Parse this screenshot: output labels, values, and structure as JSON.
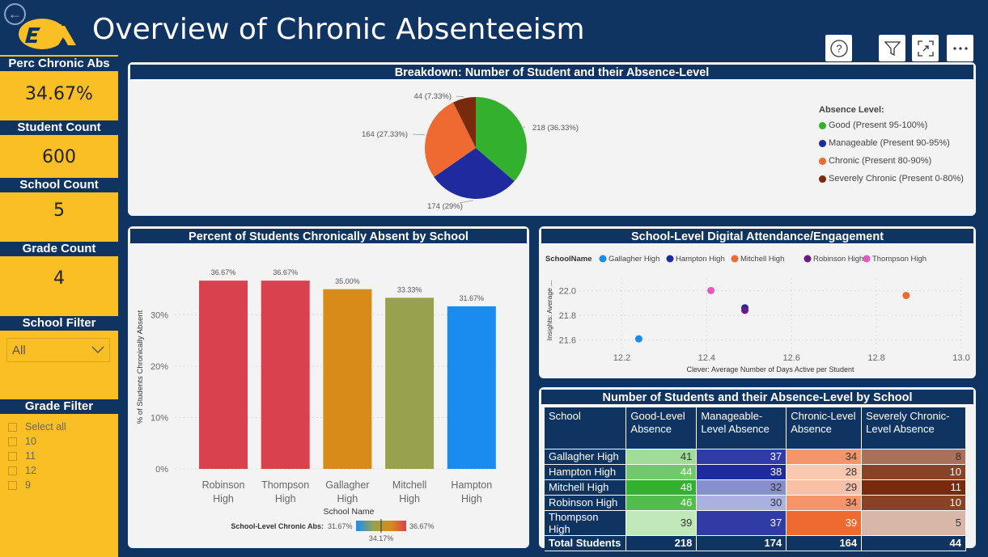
{
  "header": {
    "title": "Overview of Chronic Absenteeism"
  },
  "toolbar": {
    "help_icon": "question-circle-icon",
    "filter_icon": "funnel-icon",
    "expand_icon": "focus-mode-icon",
    "more_icon": "ellipsis-icon"
  },
  "sidebar": {
    "perc_label": "Perc Chronic Abs",
    "perc_value": "34.67%",
    "student_label": "Student Count",
    "student_value": "600",
    "school_label": "School Count",
    "school_value": "5",
    "grade_label": "Grade Count",
    "grade_value": "4",
    "school_filter_label": "School Filter",
    "school_filter_value": "All",
    "grade_filter_label": "Grade Filter",
    "grade_options": [
      "Select all",
      "10",
      "11",
      "12",
      "9"
    ]
  },
  "pie_panel": {
    "title": "Breakdown: Number of Student and their Absence-Level",
    "legend_title": "Absence Level:",
    "legend": [
      "Good (Present 95-100%)",
      "Manageable (Present 90-95%)",
      "Chronic (Present 80-90%)",
      "Severely Chronic (Present 0-80%)"
    ],
    "slice_labels": [
      "218 (36.33%)",
      "174 (29%)",
      "164 (27.33%)",
      "44 (7.33%)"
    ]
  },
  "bar_panel": {
    "title": "Percent of Students Chronically Absent by School",
    "ylabel": "% of Students Chronically Absent",
    "xlabel": "School Name",
    "yticks": [
      "0%",
      "10%",
      "20%",
      "30%"
    ],
    "categories": [
      [
        "Robinson",
        "High"
      ],
      [
        "Thompson",
        "High"
      ],
      [
        "Gallagher",
        "High"
      ],
      [
        "Mitchell",
        "High"
      ],
      [
        "Hampton",
        "High"
      ]
    ],
    "data_labels": [
      "36.67%",
      "36.67%",
      "35.00%",
      "33.33%",
      "31.67%"
    ],
    "gradient_label": "School-Level Chronic Abs:",
    "gradient_min": "31.67%",
    "gradient_max": "36.67%",
    "gradient_mid": "34.17%"
  },
  "scatter_panel": {
    "title": "School-Level Digital Attendance/Engagement",
    "legend_title": "SchoolName",
    "legend": [
      "Gallagher High",
      "Hampton High",
      "Mitchell High",
      "Robinson High",
      "Thompson High"
    ],
    "xlabel": "Clever: Average Number of Days Active per Student",
    "ylabel": "Insights: Average ...",
    "xticks": [
      "12.2",
      "12.4",
      "12.6",
      "12.8",
      "13.0"
    ],
    "yticks": [
      "21.6",
      "21.8",
      "22.0"
    ]
  },
  "table_panel": {
    "title": "Number of Students and their Absence-Level by School",
    "headers": [
      [
        "School"
      ],
      [
        "Good-Level",
        "Absence"
      ],
      [
        "Manageable-",
        "Level Absence"
      ],
      [
        "Chronic-Level",
        "Absence"
      ],
      [
        "Severely Chronic-",
        "Level Absence"
      ]
    ],
    "rows": [
      {
        "name": "Gallagher High",
        "values": [
          "41",
          "37",
          "34",
          "8"
        ]
      },
      {
        "name": "Hampton High",
        "values": [
          "44",
          "38",
          "28",
          "10"
        ]
      },
      {
        "name": "Mitchell High",
        "values": [
          "48",
          "32",
          "29",
          "11"
        ]
      },
      {
        "name": "Robinson High",
        "values": [
          "46",
          "30",
          "34",
          "10"
        ]
      },
      {
        "name": "Thompson High",
        "values": [
          "39",
          "37",
          "39",
          "5"
        ]
      }
    ],
    "total": {
      "name": "Total Students",
      "values": [
        "218",
        "174",
        "164",
        "44"
      ]
    }
  },
  "colors": {
    "navy": "#0f3461",
    "gold": "#fbbf26",
    "good": "#34b02f",
    "manageable": "#1e2a9e",
    "chronic": "#ef6a31",
    "severe": "#7a2a0c"
  },
  "chart_data": [
    {
      "type": "pie",
      "title": "Breakdown: Number of Student and their Absence-Level",
      "categories": [
        "Good (Present 95-100%)",
        "Manageable (Present 90-95%)",
        "Chronic (Present 80-90%)",
        "Severely Chronic (Present 0-80%)"
      ],
      "values": [
        218,
        174,
        164,
        44
      ],
      "percents": [
        36.33,
        29,
        27.33,
        7.33
      ],
      "colors": [
        "#34b02f",
        "#1e2a9e",
        "#ef6a31",
        "#7a2a0c"
      ],
      "legend": "right"
    },
    {
      "type": "bar",
      "title": "Percent of Students Chronically Absent by School",
      "categories": [
        "Robinson High",
        "Thompson High",
        "Gallagher High",
        "Mitchell High",
        "Hampton High"
      ],
      "values": [
        36.67,
        36.67,
        35.0,
        33.33,
        31.67
      ],
      "colors": [
        "#d9414e",
        "#d9414e",
        "#d98b1a",
        "#98a24e",
        "#1a8cf0"
      ],
      "xlabel": "School Name",
      "ylabel": "% of Students Chronically Absent",
      "ylim": [
        0,
        40
      ],
      "grid": true
    },
    {
      "type": "scatter",
      "title": "School-Level Digital Attendance/Engagement",
      "series": [
        {
          "name": "Gallagher High",
          "x": [
            12.24
          ],
          "y": [
            21.61
          ],
          "color": "#1a8cf0"
        },
        {
          "name": "Hampton High",
          "x": [
            12.49
          ],
          "y": [
            21.86
          ],
          "color": "#1e2a9e"
        },
        {
          "name": "Mitchell High",
          "x": [
            12.87
          ],
          "y": [
            21.96
          ],
          "color": "#ef6a31"
        },
        {
          "name": "Robinson High",
          "x": [
            12.49
          ],
          "y": [
            21.84
          ],
          "color": "#6a1a82"
        },
        {
          "name": "Thompson High",
          "x": [
            12.41
          ],
          "y": [
            22.0
          ],
          "color": "#e55abf"
        }
      ],
      "xlabel": "Clever: Average Number of Days Active per Student",
      "ylabel": "Insights: Average ...",
      "xlim": [
        12.1,
        13.0
      ],
      "ylim": [
        21.5,
        22.1
      ],
      "legend": "top",
      "grid": true
    },
    {
      "type": "table",
      "title": "Number of Students and their Absence-Level by School",
      "columns": [
        "School",
        "Good-Level Absence",
        "Manageable-Level Absence",
        "Chronic-Level Absence",
        "Severely Chronic-Level Absence"
      ],
      "rows": [
        [
          "Gallagher High",
          41,
          37,
          34,
          8
        ],
        [
          "Hampton High",
          44,
          38,
          28,
          10
        ],
        [
          "Mitchell High",
          48,
          32,
          29,
          11
        ],
        [
          "Robinson High",
          46,
          30,
          34,
          10
        ],
        [
          "Thompson High",
          39,
          37,
          39,
          5
        ],
        [
          "Total Students",
          218,
          174,
          164,
          44
        ]
      ]
    }
  ]
}
